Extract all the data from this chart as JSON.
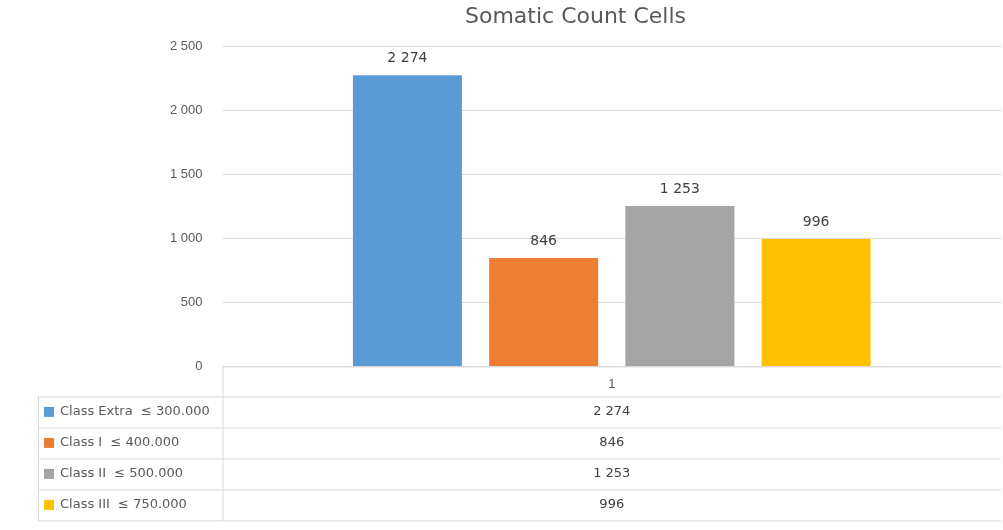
{
  "chart_data": {
    "type": "bar",
    "title": "Somatic Count Cells",
    "categories": [
      "1"
    ],
    "series": [
      {
        "name": "Class Extra  ≤ 300.000",
        "color": "#5b9bd5",
        "values": [
          2274
        ],
        "value_labels": [
          "2 274"
        ]
      },
      {
        "name": "Class I  ≤ 400.000",
        "color": "#ed7d31",
        "values": [
          846
        ],
        "value_labels": [
          "846"
        ]
      },
      {
        "name": "Class II  ≤ 500.000",
        "color": "#a5a5a5",
        "values": [
          1253
        ],
        "value_labels": [
          "1 253"
        ]
      },
      {
        "name": "Class III  ≤ 750.000",
        "color": "#ffc000",
        "values": [
          996
        ],
        "value_labels": [
          "996"
        ]
      }
    ],
    "ylim": [
      0,
      2500
    ],
    "yticks": [
      0,
      500,
      {
        "value": 1000,
        "label": "1 000"
      },
      {
        "value": 1500,
        "label": "1 500"
      },
      {
        "value": 2000,
        "label": "2 000"
      },
      {
        "value": 2500,
        "label": "2 500"
      }
    ],
    "grid": "y",
    "legend": "bottom"
  }
}
